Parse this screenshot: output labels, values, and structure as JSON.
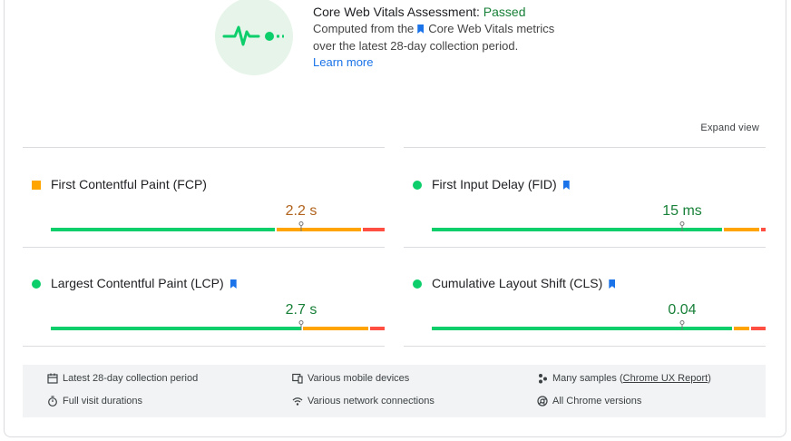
{
  "assessment": {
    "title_prefix": "Core Web Vitals Assessment: ",
    "status": "Passed",
    "line1_prefix": "Computed from the",
    "line1_link": "Core Web Vitals metrics",
    "line2": "over the latest 28-day collection period.",
    "learn_more": "Learn more"
  },
  "expand_view": "Expand view",
  "metrics": [
    {
      "name": "First Contentful Paint (FCP)",
      "value": "2.2 s",
      "indicator": "square",
      "status": "average",
      "core_web_vital": false,
      "distribution_percent": {
        "good": 67,
        "needs_improvement": 26,
        "poor": 7
      },
      "percentile_marker_percent": 75
    },
    {
      "name": "First Input Delay (FID)",
      "value": "15 ms",
      "indicator": "circle",
      "status": "good",
      "core_web_vital": true,
      "distribution_percent": {
        "good": 87,
        "needs_improvement": 11,
        "poor": 2
      },
      "percentile_marker_percent": 75
    },
    {
      "name": "Largest Contentful Paint (LCP)",
      "value": "2.7 s",
      "indicator": "circle",
      "status": "good",
      "core_web_vital": true,
      "distribution_percent": {
        "good": 75,
        "needs_improvement": 20,
        "poor": 5
      },
      "percentile_marker_percent": 75
    },
    {
      "name": "Cumulative Layout Shift (CLS)",
      "value": "0.04",
      "indicator": "circle",
      "status": "good",
      "core_web_vital": true,
      "distribution_percent": {
        "good": 90,
        "needs_improvement": 5,
        "poor": 5
      },
      "percentile_marker_percent": 75
    }
  ],
  "footer": {
    "period": "Latest 28-day collection period",
    "durations": "Full visit durations",
    "devices": "Various mobile devices",
    "network": "Various network connections",
    "samples_prefix": "Many samples (",
    "samples_link": "Chrome UX Report",
    "samples_suffix": ")",
    "versions": "All Chrome versions"
  },
  "colors": {
    "good": "#0cce6b",
    "average": "#ffa400",
    "poor": "#ff4e42",
    "link": "#1a73e8",
    "passed": "#188038"
  }
}
